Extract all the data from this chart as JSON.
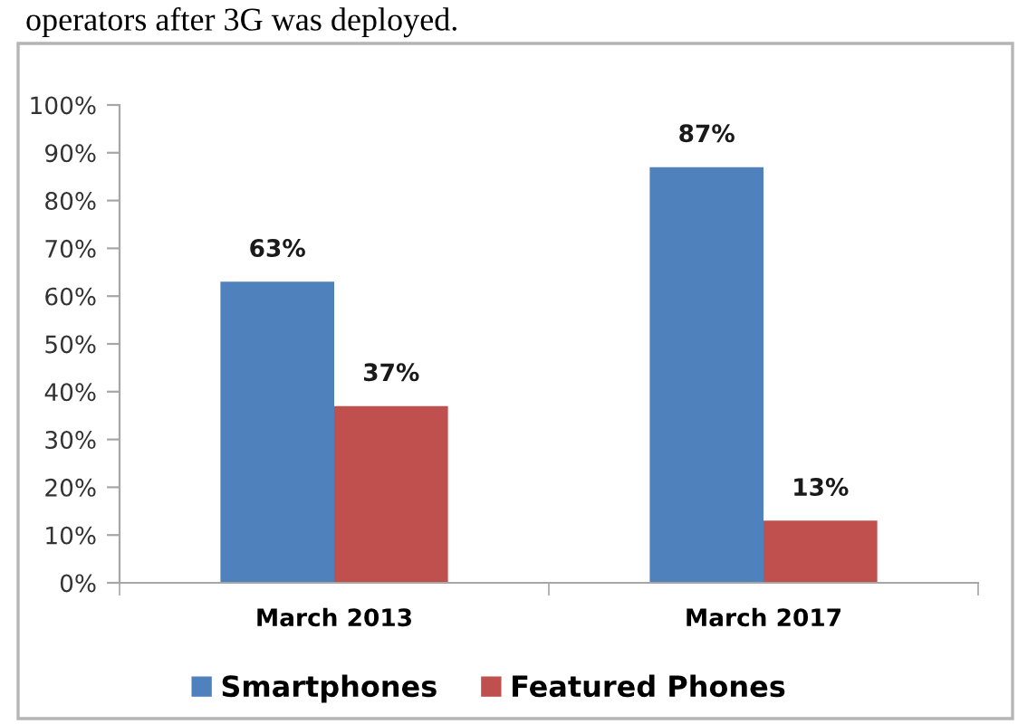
{
  "chart_data": {
    "type": "bar",
    "categories": [
      "March 2013",
      "March 2017"
    ],
    "series": [
      {
        "name": "Smartphones",
        "color": "#4f81bd",
        "values": [
          63,
          87
        ],
        "value_labels": [
          "63%",
          "87%"
        ]
      },
      {
        "name": "Featured Phones",
        "color": "#c0504d",
        "values": [
          37,
          13
        ],
        "value_labels": [
          "37%",
          "13%"
        ]
      }
    ],
    "ylim": [
      0,
      100
    ],
    "yticks": [
      {
        "value": 0,
        "label": "0%"
      },
      {
        "value": 10,
        "label": "10%"
      },
      {
        "value": 20,
        "label": "20%"
      },
      {
        "value": 30,
        "label": "30%"
      },
      {
        "value": 40,
        "label": "40%"
      },
      {
        "value": 50,
        "label": "50%"
      },
      {
        "value": 60,
        "label": "60%"
      },
      {
        "value": 70,
        "label": "70%"
      },
      {
        "value": 80,
        "label": "80%"
      },
      {
        "value": 90,
        "label": "90%"
      },
      {
        "value": 100,
        "label": "100%"
      }
    ],
    "grid": false,
    "legend": "bottom",
    "annotations": [
      "operators after 3G was deployed."
    ]
  }
}
